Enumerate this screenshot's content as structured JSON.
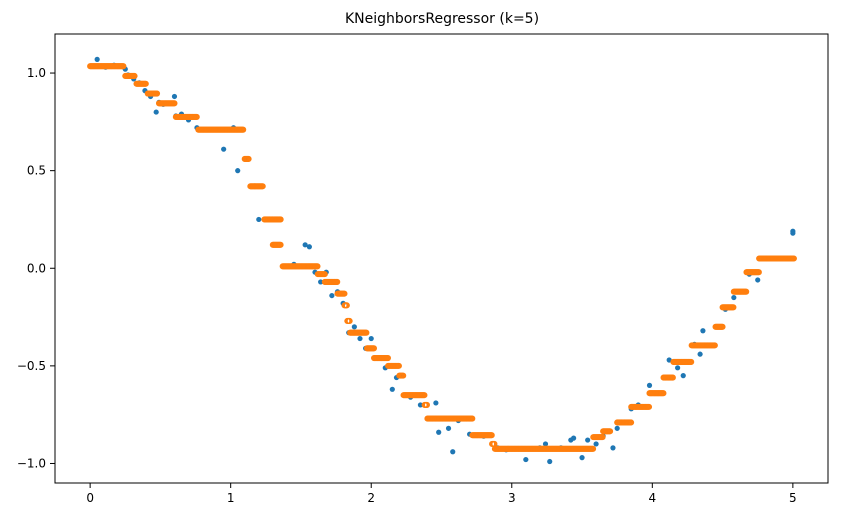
{
  "chart_data": {
    "type": "scatter",
    "title": "KNeighborsRegressor (k=5)",
    "xlabel": "",
    "ylabel": "",
    "xlim": [
      -0.25,
      5.25
    ],
    "ylim": [
      -1.1,
      1.2
    ],
    "x_ticks": [
      0,
      1,
      2,
      3,
      4,
      5
    ],
    "x_tick_labels": [
      "0",
      "1",
      "2",
      "3",
      "4",
      "5"
    ],
    "y_ticks": [
      1.0,
      0.5,
      0.0,
      -0.5,
      -1.0
    ],
    "y_tick_labels": [
      "1.0",
      "0.5",
      "0.0",
      "−0.5",
      "−1.0"
    ],
    "grid": false,
    "legend": false,
    "colors": {
      "data": "#1f77b4",
      "prediction": "#ff7f0e"
    },
    "series": [
      {
        "marker": "filled-circle",
        "color": "#1f77b4",
        "x": [
          0.05,
          0.11,
          0.17,
          0.24,
          0.25,
          0.27,
          0.31,
          0.35,
          0.39,
          0.43,
          0.47,
          0.49,
          0.52,
          0.6,
          0.61,
          0.65,
          0.7,
          0.76,
          0.85,
          0.95,
          1.02,
          1.05,
          1.1,
          1.15,
          1.2,
          1.3,
          1.38,
          1.45,
          1.53,
          1.56,
          1.6,
          1.64,
          1.68,
          1.72,
          1.76,
          1.8,
          1.84,
          1.88,
          1.92,
          1.96,
          2.0,
          2.05,
          2.1,
          2.15,
          2.18,
          2.22,
          2.28,
          2.35,
          2.4,
          2.46,
          2.48,
          2.55,
          2.58,
          2.62,
          2.7,
          2.8,
          2.9,
          2.96,
          3.1,
          3.2,
          3.24,
          3.27,
          3.35,
          3.42,
          3.44,
          3.5,
          3.54,
          3.6,
          3.65,
          3.72,
          3.75,
          3.8,
          3.85,
          3.9,
          3.98,
          4.02,
          4.12,
          4.18,
          4.22,
          4.3,
          4.34,
          4.36,
          4.45,
          4.52,
          4.58,
          4.66,
          4.69,
          4.75,
          4.85,
          4.95,
          5.0,
          5.0
        ],
        "y": [
          1.07,
          1.03,
          1.04,
          1.03,
          1.02,
          0.99,
          0.97,
          0.95,
          0.91,
          0.88,
          0.8,
          0.85,
          0.84,
          0.88,
          0.78,
          0.79,
          0.76,
          0.72,
          0.71,
          0.61,
          0.72,
          0.5,
          0.56,
          0.42,
          0.25,
          0.12,
          0.01,
          0.02,
          0.12,
          0.11,
          -0.02,
          -0.07,
          -0.02,
          -0.14,
          -0.12,
          -0.18,
          -0.33,
          -0.3,
          -0.36,
          -0.41,
          -0.36,
          -0.46,
          -0.51,
          -0.62,
          -0.56,
          -0.55,
          -0.66,
          -0.7,
          -0.77,
          -0.69,
          -0.84,
          -0.82,
          -0.94,
          -0.78,
          -0.85,
          -0.86,
          -0.92,
          -0.93,
          -0.98,
          -0.92,
          -0.9,
          -0.99,
          -0.92,
          -0.88,
          -0.87,
          -0.97,
          -0.88,
          -0.9,
          -0.86,
          -0.92,
          -0.82,
          -0.79,
          -0.72,
          -0.7,
          -0.6,
          -0.64,
          -0.47,
          -0.51,
          -0.55,
          -0.39,
          -0.44,
          -0.32,
          -0.3,
          -0.21,
          -0.15,
          -0.12,
          -0.03,
          -0.06,
          0.05,
          0.05,
          0.19,
          0.18
        ]
      },
      {
        "marker": "open-circle",
        "color": "#ff7f0e",
        "steps": [
          [
            0.0,
            0.24,
            1.035
          ],
          [
            0.25,
            0.32,
            0.985
          ],
          [
            0.33,
            0.4,
            0.945
          ],
          [
            0.41,
            0.48,
            0.895
          ],
          [
            0.49,
            0.6,
            0.845
          ],
          [
            0.61,
            0.76,
            0.775
          ],
          [
            0.77,
            1.09,
            0.71
          ],
          [
            1.1,
            1.13,
            0.56
          ],
          [
            1.14,
            1.23,
            0.42
          ],
          [
            1.24,
            1.36,
            0.25
          ],
          [
            1.3,
            1.36,
            0.12
          ],
          [
            1.37,
            1.62,
            0.01
          ],
          [
            1.62,
            1.67,
            -0.03
          ],
          [
            1.67,
            1.76,
            -0.07
          ],
          [
            1.76,
            1.81,
            -0.13
          ],
          [
            1.81,
            1.83,
            -0.19
          ],
          [
            1.83,
            1.85,
            -0.27
          ],
          [
            1.85,
            1.97,
            -0.33
          ],
          [
            1.97,
            2.02,
            -0.41
          ],
          [
            2.02,
            2.12,
            -0.46
          ],
          [
            2.12,
            2.2,
            -0.5
          ],
          [
            2.2,
            2.23,
            -0.55
          ],
          [
            2.23,
            2.38,
            -0.65
          ],
          [
            2.38,
            2.4,
            -0.7
          ],
          [
            2.4,
            2.72,
            -0.77
          ],
          [
            2.72,
            2.86,
            -0.855
          ],
          [
            2.86,
            2.88,
            -0.9
          ],
          [
            2.88,
            3.58,
            -0.925
          ],
          [
            3.58,
            3.65,
            -0.865
          ],
          [
            3.65,
            3.7,
            -0.835
          ],
          [
            3.75,
            3.85,
            -0.79
          ],
          [
            3.85,
            3.98,
            -0.71
          ],
          [
            3.98,
            4.08,
            -0.64
          ],
          [
            4.08,
            4.15,
            -0.56
          ],
          [
            4.15,
            4.28,
            -0.48
          ],
          [
            4.28,
            4.45,
            -0.395
          ],
          [
            4.45,
            4.5,
            -0.3
          ],
          [
            4.5,
            4.58,
            -0.2
          ],
          [
            4.58,
            4.67,
            -0.12
          ],
          [
            4.67,
            4.76,
            -0.02
          ],
          [
            4.76,
            5.01,
            0.05
          ]
        ]
      }
    ]
  }
}
